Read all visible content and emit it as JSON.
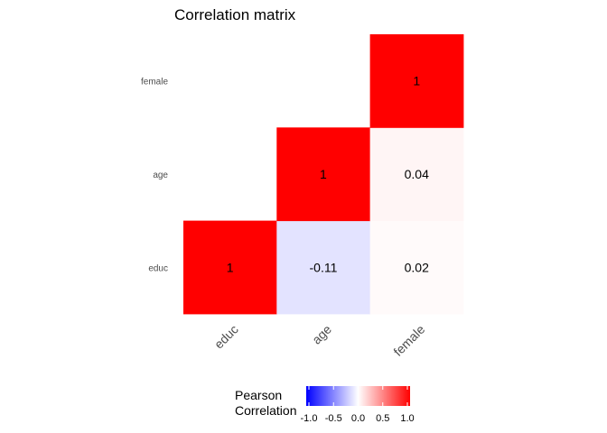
{
  "chart_data": {
    "type": "heatmap",
    "title": "Correlation matrix",
    "variables": [
      "educ",
      "age",
      "female"
    ],
    "cells": [
      {
        "x": "educ",
        "y": "educ",
        "value": 1,
        "label": "1"
      },
      {
        "x": "age",
        "y": "educ",
        "value": -0.11,
        "label": "-0.11"
      },
      {
        "x": "female",
        "y": "educ",
        "value": 0.02,
        "label": "0.02"
      },
      {
        "x": "age",
        "y": "age",
        "value": 1,
        "label": "1"
      },
      {
        "x": "female",
        "y": "age",
        "value": 0.04,
        "label": "0.04"
      },
      {
        "x": "female",
        "y": "female",
        "value": 1,
        "label": "1"
      }
    ],
    "legend": {
      "title_lines": [
        "Pearson",
        "Correlation"
      ],
      "ticks": [
        "-1.0",
        "-0.5",
        "0.0",
        "0.5",
        "1.0"
      ],
      "tick_values": [
        -1,
        -0.5,
        0,
        0.5,
        1
      ],
      "range": [
        -1,
        1
      ],
      "low_color": "#0000ff",
      "mid_color": "#ffffff",
      "high_color": "#ff0000",
      "placement": "bottom"
    },
    "grid": false
  }
}
